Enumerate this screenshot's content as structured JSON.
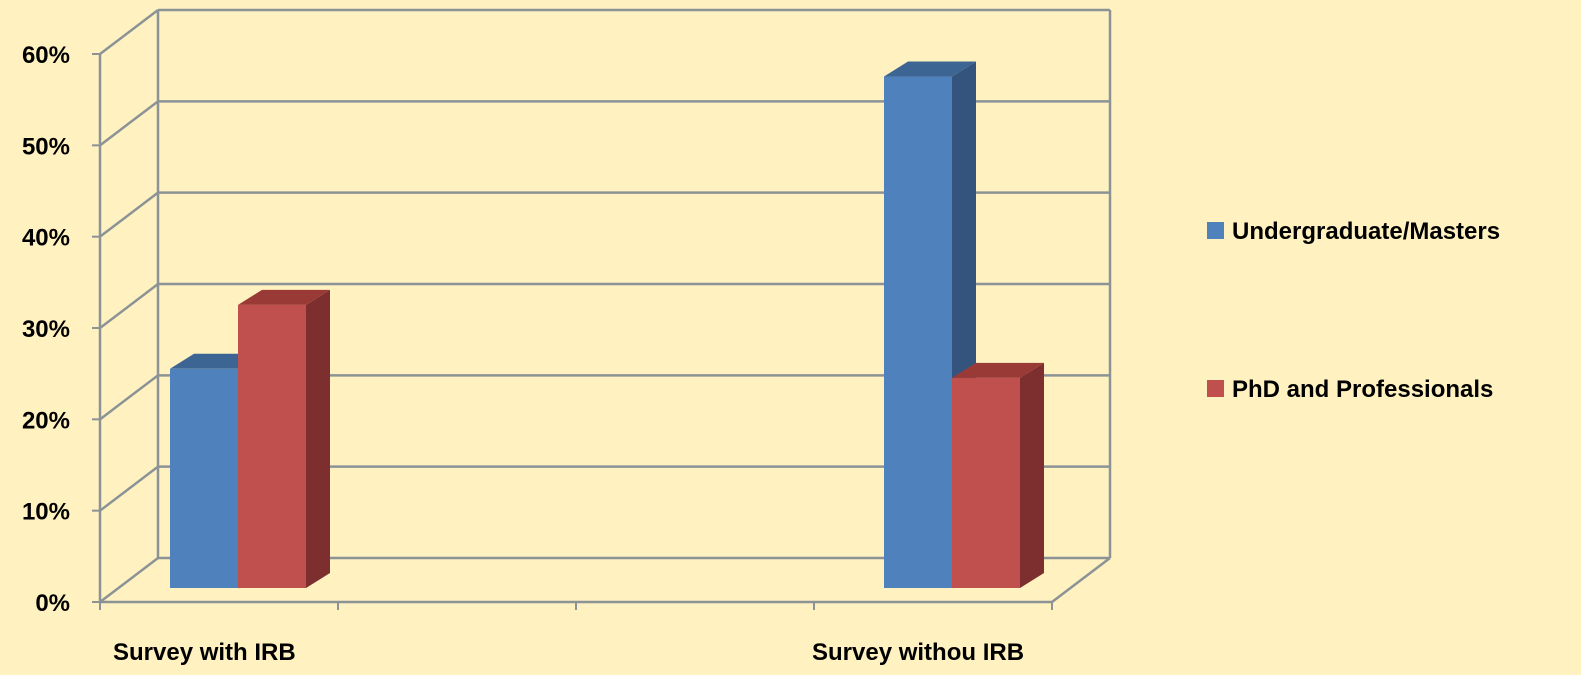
{
  "chart_data": {
    "type": "bar",
    "categories": [
      "Survey with IRB",
      "Survey withou IRB"
    ],
    "series": [
      {
        "name": "Undergraduate/Masters",
        "color": "#4f81bd",
        "side_color": "#34547d",
        "top_color": "#3d6593",
        "values": [
          24,
          56
        ]
      },
      {
        "name": "PhD and Professionals",
        "color": "#c0504d",
        "side_color": "#7c2f2e",
        "top_color": "#9a3a37",
        "values": [
          31,
          23
        ]
      }
    ],
    "y_ticks": [
      "0%",
      "10%",
      "20%",
      "30%",
      "40%",
      "50%",
      "60%"
    ],
    "ylim": [
      0,
      60
    ],
    "grid": true,
    "legend_position": "right",
    "background_color": "#fff2c0",
    "grid_color": "#8c9396"
  }
}
